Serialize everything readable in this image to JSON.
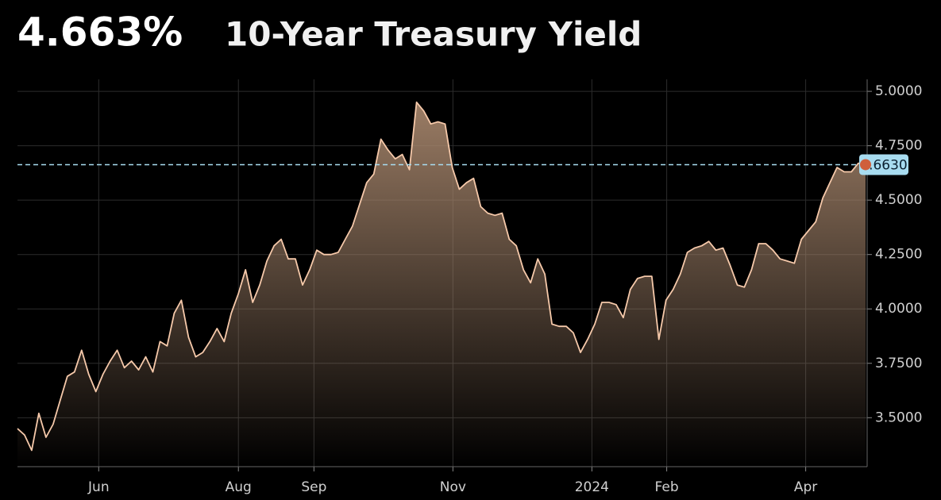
{
  "chart_data": {
    "type": "area",
    "headline": "4.663%",
    "title": "10-Year Treasury Yield",
    "values": [
      3.45,
      3.42,
      3.35,
      3.52,
      3.41,
      3.47,
      3.58,
      3.69,
      3.71,
      3.81,
      3.7,
      3.62,
      3.7,
      3.76,
      3.81,
      3.73,
      3.76,
      3.72,
      3.78,
      3.71,
      3.85,
      3.83,
      3.98,
      4.04,
      3.87,
      3.78,
      3.8,
      3.85,
      3.91,
      3.85,
      3.98,
      4.07,
      4.18,
      4.03,
      4.11,
      4.22,
      4.29,
      4.32,
      4.23,
      4.23,
      4.11,
      4.18,
      4.27,
      4.25,
      4.25,
      4.26,
      4.32,
      4.38,
      4.48,
      4.58,
      4.62,
      4.78,
      4.73,
      4.69,
      4.71,
      4.64,
      4.95,
      4.91,
      4.85,
      4.86,
      4.85,
      4.65,
      4.55,
      4.58,
      4.6,
      4.47,
      4.44,
      4.43,
      4.44,
      4.32,
      4.29,
      4.18,
      4.12,
      4.23,
      4.16,
      3.93,
      3.92,
      3.92,
      3.89,
      3.8,
      3.86,
      3.93,
      4.03,
      4.03,
      4.02,
      3.96,
      4.09,
      4.14,
      4.15,
      4.15,
      3.86,
      4.04,
      4.09,
      4.16,
      4.26,
      4.28,
      4.29,
      4.31,
      4.27,
      4.28,
      4.2,
      4.11,
      4.1,
      4.18,
      4.3,
      4.3,
      4.27,
      4.23,
      4.22,
      4.21,
      4.32,
      4.36,
      4.4,
      4.51,
      4.58,
      4.65,
      4.63,
      4.63,
      4.67,
      4.663
    ],
    "color": "#f6c9aa",
    "fill_color": "#a3836a",
    "xlim": [
      0,
      119
    ],
    "xticks": [
      {
        "value": 11.4,
        "label": "Jun"
      },
      {
        "value": 31,
        "label": "Aug"
      },
      {
        "value": 41.6,
        "label": "Sep"
      },
      {
        "value": 61.1,
        "label": "Nov"
      },
      {
        "value": 80.6,
        "label": "2024"
      },
      {
        "value": 91.1,
        "label": "Feb"
      },
      {
        "value": 110.6,
        "label": "Apr"
      }
    ],
    "ylim": [
      3.275,
      5.055
    ],
    "yticks": [
      {
        "value": 3.5,
        "label": "3.5000"
      },
      {
        "value": 3.75,
        "label": "3.7500"
      },
      {
        "value": 4,
        "label": "4.0000"
      },
      {
        "value": 4.25,
        "label": "4.2500"
      },
      {
        "value": 4.5,
        "label": "4.5000"
      },
      {
        "value": 4.75,
        "label": "4.7500"
      },
      {
        "value": 5,
        "label": "5.0000"
      }
    ],
    "grid": true,
    "reference_line": {
      "value": 4.663,
      "label": "4.6630",
      "color": "#a8dcf0"
    }
  }
}
